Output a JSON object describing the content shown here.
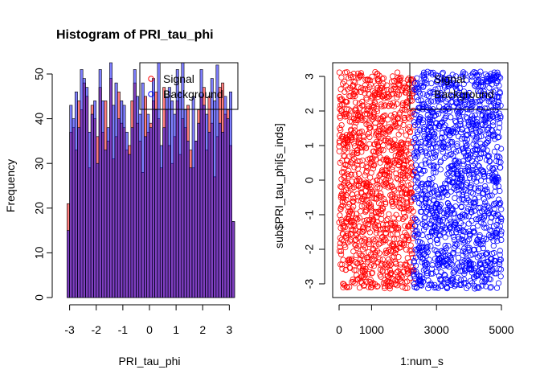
{
  "chart_data": [
    {
      "type": "bar",
      "title": "Histogram of PRI_tau_phi",
      "xlabel": "PRI_tau_phi",
      "ylabel": "Frequency",
      "xlim": [
        -3.2,
        3.2
      ],
      "ylim": [
        0,
        50
      ],
      "xticks": [
        -3,
        -2,
        -1,
        0,
        1,
        2,
        3
      ],
      "xtick_labels": [
        "-3",
        "-2",
        "-1",
        "0",
        "1",
        "2",
        "3"
      ],
      "yticks": [
        0,
        10,
        20,
        30,
        40,
        50
      ],
      "ytick_labels": [
        "0",
        "10",
        "20",
        "30",
        "40",
        "50"
      ],
      "bin_start": -3.1,
      "bin_width": 0.1,
      "series": [
        {
          "name": "Signal",
          "color": "#ff0000",
          "fill": "rgba(255,0,0,0.5)",
          "values": [
            21,
            37,
            38,
            33,
            44,
            42,
            48,
            45,
            29,
            43,
            40,
            36,
            47,
            37,
            44,
            35,
            49,
            31,
            36,
            46,
            39,
            38,
            33,
            34,
            44,
            48,
            39,
            35,
            28,
            45,
            37,
            39,
            44,
            46,
            40,
            29,
            47,
            42,
            34,
            30,
            36,
            44,
            32,
            40,
            38,
            43,
            33,
            29,
            35,
            42,
            45,
            47,
            33,
            45,
            39,
            27,
            36,
            47,
            48,
            41,
            42,
            34,
            17
          ]
        },
        {
          "name": "Background",
          "color": "#0000ff",
          "fill": "rgba(0,0,255,0.5)",
          "values": [
            15,
            43,
            40,
            46,
            38,
            51,
            49,
            47,
            37,
            41,
            44,
            30,
            51,
            44,
            33,
            38,
            53,
            43,
            48,
            40,
            44,
            43,
            37,
            32,
            38,
            51,
            45,
            41,
            48,
            36,
            41,
            38,
            49,
            42,
            54,
            34,
            38,
            45,
            47,
            44,
            41,
            51,
            46,
            53,
            42,
            35,
            29,
            45,
            35,
            39,
            51,
            43,
            41,
            37,
            49,
            44,
            52,
            39,
            37,
            45,
            40,
            46,
            17
          ]
        }
      ],
      "legend": {
        "position": "top-right",
        "entries": [
          "Signal",
          "Background"
        ]
      }
    },
    {
      "type": "scatter",
      "xlabel": "1:num_s",
      "ylabel": "sub$PRI_tau_phi[s_inds]",
      "xlim": [
        0,
        5000
      ],
      "ylim": [
        -3.14,
        3.14
      ],
      "xticks": [
        0,
        1000,
        3000,
        5000
      ],
      "xtick_labels": [
        "0",
        "1000",
        "3000",
        "5000"
      ],
      "yticks": [
        -3,
        -2,
        -1,
        0,
        1,
        2,
        3
      ],
      "ytick_labels": [
        "-3",
        "-2",
        "-1",
        "0",
        "1",
        "2",
        "3"
      ],
      "marker": "open-circle",
      "series": [
        {
          "name": "Signal",
          "color": "#ff0000",
          "x_range": [
            1,
            2300
          ],
          "y_distribution": "uniform",
          "y_range": [
            -3.14,
            3.14
          ]
        },
        {
          "name": "Background",
          "color": "#0000ff",
          "x_range": [
            2301,
            5000
          ],
          "y_distribution": "uniform",
          "y_range": [
            -3.14,
            3.14
          ]
        }
      ],
      "legend": {
        "position": "top-right",
        "entries": [
          "Signal",
          "Background"
        ]
      }
    }
  ]
}
